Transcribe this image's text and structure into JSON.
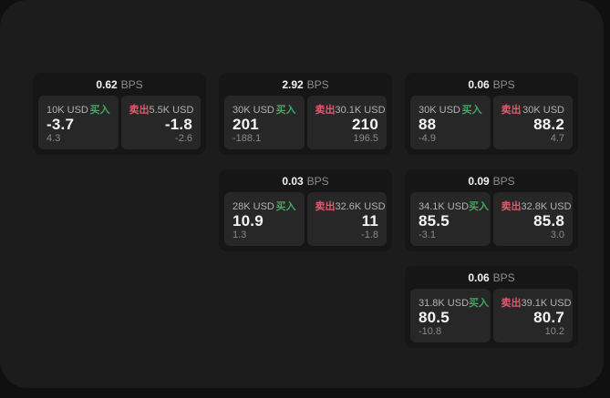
{
  "page": {
    "bps_unit": "BPS",
    "buy_label": "买入",
    "sell_label": "卖出",
    "colors": {
      "outer_background": "#101011",
      "panel_background": "#1c1c1d",
      "card_background": "#161617",
      "subpanel_background": "#272728",
      "buy_accent": "#3fa862",
      "sell_accent": "#e05a6d"
    }
  },
  "cards": [
    {
      "bps": "0.62",
      "buy": {
        "amount": "10K USD",
        "value": "-3.7",
        "delta": "4.3"
      },
      "sell": {
        "amount": "5.5K USD",
        "value": "-1.8",
        "delta": "-2.6"
      }
    },
    {
      "bps": "2.92",
      "buy": {
        "amount": "30K USD",
        "value": "201",
        "delta": "-188.1"
      },
      "sell": {
        "amount": "30.1K USD",
        "value": "210",
        "delta": "196.5"
      }
    },
    {
      "bps": "0.06",
      "buy": {
        "amount": "30K USD",
        "value": "88",
        "delta": "-4.9"
      },
      "sell": {
        "amount": "30K USD",
        "value": "88.2",
        "delta": "4.7"
      }
    },
    {
      "bps": "0.03",
      "buy": {
        "amount": "28K USD",
        "value": "10.9",
        "delta": "1.3"
      },
      "sell": {
        "amount": "32.6K USD",
        "value": "11",
        "delta": "-1.8"
      }
    },
    {
      "bps": "0.09",
      "buy": {
        "amount": "34.1K USD",
        "value": "85.5",
        "delta": "-3.1"
      },
      "sell": {
        "amount": "32.8K USD",
        "value": "85.8",
        "delta": "3.0"
      }
    },
    {
      "bps": "0.06",
      "buy": {
        "amount": "31.8K USD",
        "value": "80.5",
        "delta": "-10.8"
      },
      "sell": {
        "amount": "39.1K USD",
        "value": "80.7",
        "delta": "10.2"
      }
    }
  ]
}
